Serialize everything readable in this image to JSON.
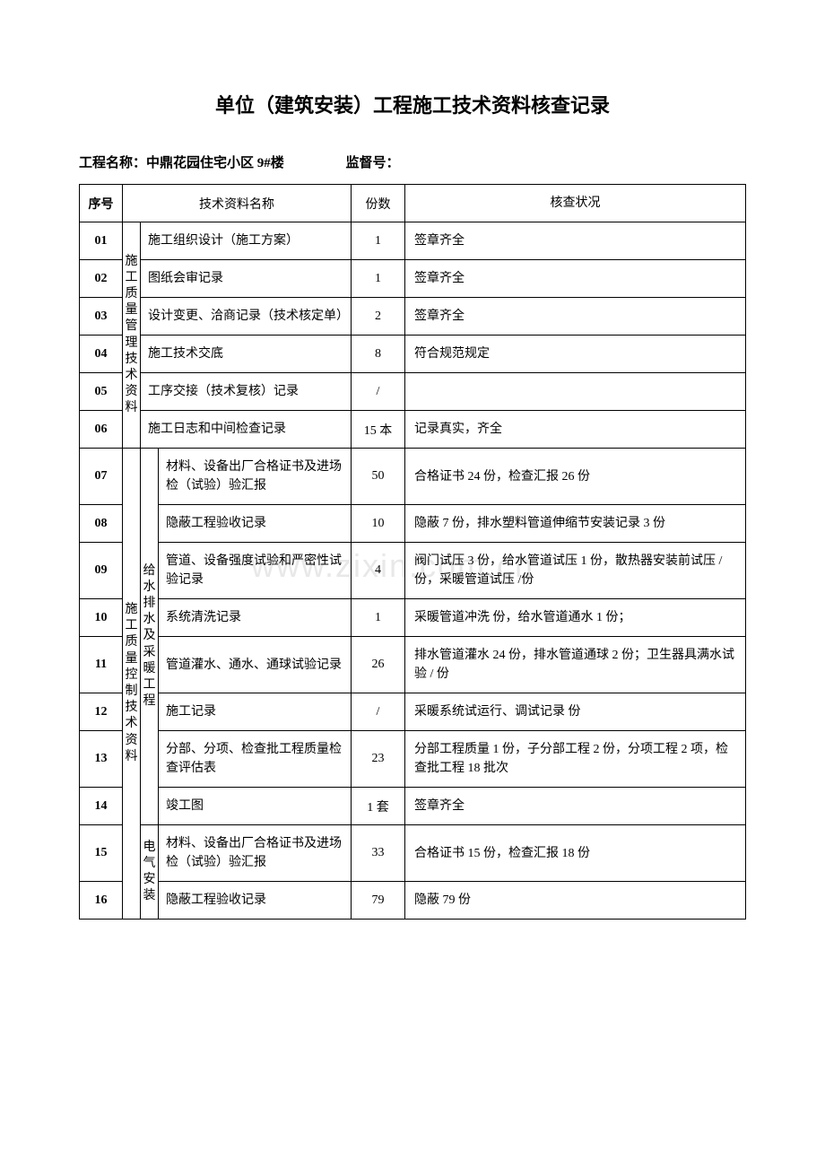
{
  "title": "单位（建筑安装）工程施工技术资料核查记录",
  "project_label": "工程名称：",
  "project_name": "中鼎花园住宅小区 9#楼",
  "supervision_label": "监督号：",
  "supervision_no": "",
  "watermark": "www.zixin.com.cn",
  "headers": {
    "seq": "序号",
    "name": "技术资料名称",
    "count": "份数",
    "status": "核查状况"
  },
  "cat1_label_a": "施工质量管理技术资料",
  "cat1_label_b": "施工质量控制技术资料",
  "cat2_label_a": "给水排水及采暖工程",
  "cat2_label_b": "电气安装",
  "rows": [
    {
      "seq": "01",
      "name": "施工组织设计（施工方案）",
      "count": "1",
      "status": "签章齐全"
    },
    {
      "seq": "02",
      "name": "图纸会审记录",
      "count": "1",
      "status": "签章齐全"
    },
    {
      "seq": "03",
      "name": "设计变更、洽商记录（技术核定单）",
      "count": "2",
      "status": "签章齐全"
    },
    {
      "seq": "04",
      "name": "施工技术交底",
      "count": "8",
      "status": "符合规范规定"
    },
    {
      "seq": "05",
      "name": "工序交接（技术复核）记录",
      "count": "/",
      "status": ""
    },
    {
      "seq": "06",
      "name": "施工日志和中间检查记录",
      "count": "15 本",
      "status": "记录真实，齐全"
    },
    {
      "seq": "07",
      "name": "材料、设备出厂合格证书及进场检（试验）验汇报",
      "count": "50",
      "status": "合格证书 24 份，检查汇报 26 份"
    },
    {
      "seq": "08",
      "name": "隐蔽工程验收记录",
      "count": "10",
      "status": "隐蔽 7 份，排水塑料管道伸缩节安装记录 3 份"
    },
    {
      "seq": "09",
      "name": "管道、设备强度试验和严密性试验记录",
      "count": "4",
      "status": "阀门试压 3 份，给水管道试压 1 份，散热器安装前试压 /份，采暖管道试压 /份"
    },
    {
      "seq": "10",
      "name": "系统清洗记录",
      "count": "1",
      "status": "采暖管道冲洗  份，给水管道通水 1    份；"
    },
    {
      "seq": "11",
      "name": "管道灌水、通水、通球试验记录",
      "count": "26",
      "status": "排水管道灌水 24 份，排水管道通球  2  份；卫生器具满水试验   /   份"
    },
    {
      "seq": "12",
      "name": "施工记录",
      "count": "/",
      "status": "采暖系统试运行、调试记录    份"
    },
    {
      "seq": "13",
      "name": "分部、分项、检查批工程质量检查评估表",
      "count": "23",
      "status": "分部工程质量  1  份，子分部工程 2 份，分项工程 2  项，检查批工程 18   批次"
    },
    {
      "seq": "14",
      "name": "竣工图",
      "count": "1 套",
      "status": "签章齐全"
    },
    {
      "seq": "15",
      "name": "材料、设备出厂合格证书及进场检（试验）验汇报",
      "count": "33",
      "status": "合格证书  15  份，检查汇报 18  份"
    },
    {
      "seq": "16",
      "name": "隐蔽工程验收记录",
      "count": "79",
      "status": "隐蔽 79   份"
    }
  ]
}
